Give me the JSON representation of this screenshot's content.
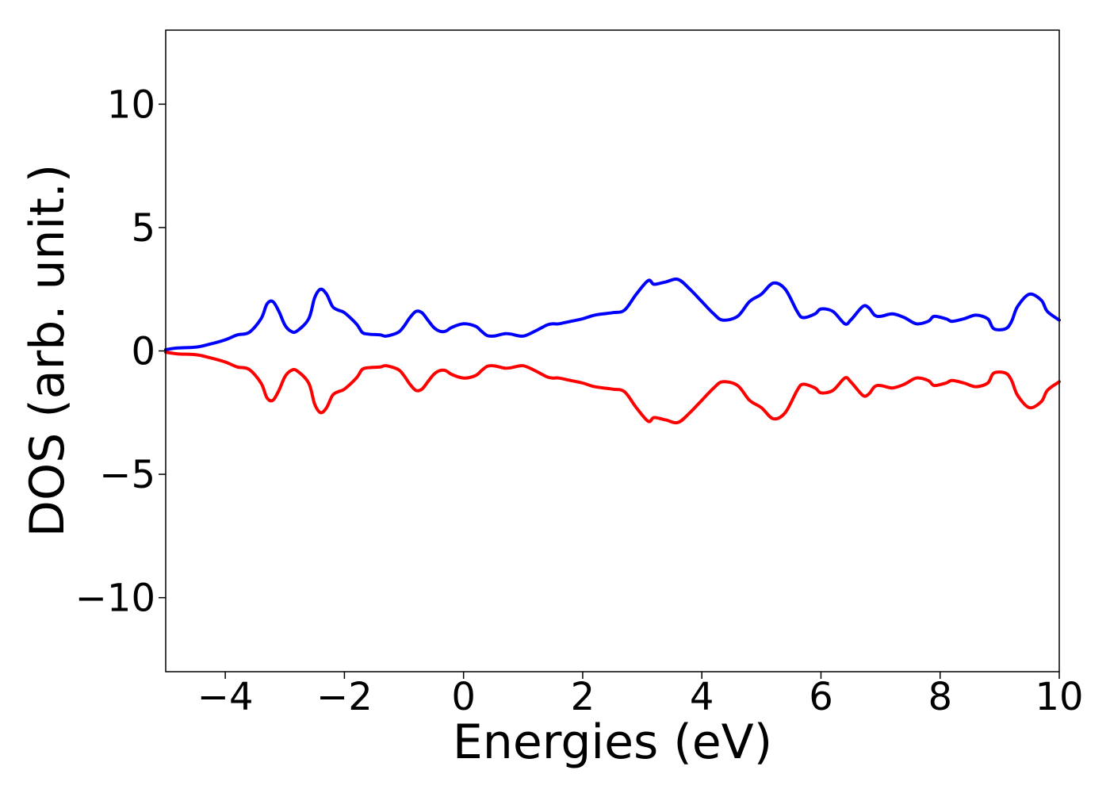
{
  "chart_data": {
    "type": "line",
    "title": "",
    "xlabel": "Energies (eV)",
    "ylabel": "DOS (arb. unit.)",
    "xlim": [
      -5,
      10
    ],
    "ylim": [
      -13,
      13
    ],
    "xticks": [
      -4,
      -2,
      0,
      2,
      4,
      6,
      8,
      10
    ],
    "xtick_labels": [
      "−4",
      "−2",
      "0",
      "2",
      "4",
      "6",
      "8",
      "10"
    ],
    "yticks": [
      -10,
      -5,
      0,
      5,
      10
    ],
    "ytick_labels": [
      "−10",
      "−5",
      "0",
      "5",
      "10"
    ],
    "grid": false,
    "legend": "none",
    "series": [
      {
        "color": "#0000ff",
        "x": [
          -5.0,
          -4.8,
          -4.5,
          -4.3,
          -4.0,
          -3.8,
          -3.6,
          -3.4,
          -3.3,
          -3.2,
          -3.1,
          -3.0,
          -2.9,
          -2.8,
          -2.6,
          -2.5,
          -2.4,
          -2.3,
          -2.2,
          -2.1,
          -2.0,
          -1.8,
          -1.7,
          -1.6,
          -1.4,
          -1.3,
          -1.1,
          -1.0,
          -0.9,
          -0.8,
          -0.7,
          -0.6,
          -0.5,
          -0.4,
          -0.3,
          -0.2,
          0.0,
          0.2,
          0.3,
          0.4,
          0.5,
          0.6,
          0.7,
          0.8,
          1.0,
          1.2,
          1.4,
          1.5,
          1.6,
          1.8,
          2.0,
          2.2,
          2.5,
          2.7,
          2.9,
          3.1,
          3.2,
          3.4,
          3.6,
          3.8,
          4.0,
          4.2,
          4.35,
          4.6,
          4.8,
          5.0,
          5.2,
          5.4,
          5.6,
          5.7,
          5.9,
          6.0,
          6.2,
          6.4,
          6.5,
          6.7,
          6.8,
          6.9,
          7.0,
          7.2,
          7.4,
          7.6,
          7.8,
          7.9,
          8.1,
          8.2,
          8.4,
          8.6,
          8.8,
          8.9,
          9.1,
          9.2,
          9.3,
          9.5,
          9.7,
          9.8,
          10.0
        ],
        "y": [
          0.05,
          0.12,
          0.15,
          0.25,
          0.45,
          0.65,
          0.75,
          1.3,
          1.9,
          2.0,
          1.6,
          1.05,
          0.8,
          0.8,
          1.3,
          2.15,
          2.5,
          2.3,
          1.8,
          1.65,
          1.55,
          1.1,
          0.75,
          0.68,
          0.65,
          0.6,
          0.75,
          1.0,
          1.35,
          1.6,
          1.55,
          1.25,
          0.95,
          0.8,
          0.8,
          0.95,
          1.1,
          1.0,
          0.8,
          0.62,
          0.6,
          0.65,
          0.7,
          0.68,
          0.6,
          0.8,
          1.05,
          1.1,
          1.1,
          1.2,
          1.3,
          1.45,
          1.55,
          1.65,
          2.3,
          2.85,
          2.7,
          2.8,
          2.9,
          2.5,
          2.0,
          1.5,
          1.25,
          1.4,
          2.0,
          2.3,
          2.75,
          2.5,
          1.6,
          1.35,
          1.5,
          1.7,
          1.6,
          1.1,
          1.25,
          1.8,
          1.75,
          1.45,
          1.4,
          1.5,
          1.35,
          1.1,
          1.2,
          1.4,
          1.3,
          1.2,
          1.3,
          1.45,
          1.3,
          0.9,
          0.9,
          1.2,
          1.8,
          2.3,
          2.05,
          1.6,
          1.25
        ]
      },
      {
        "color": "#ff0000",
        "x": [
          -5.0,
          -4.8,
          -4.5,
          -4.3,
          -4.0,
          -3.8,
          -3.6,
          -3.4,
          -3.3,
          -3.2,
          -3.1,
          -3.0,
          -2.9,
          -2.8,
          -2.6,
          -2.5,
          -2.4,
          -2.3,
          -2.2,
          -2.1,
          -2.0,
          -1.8,
          -1.7,
          -1.6,
          -1.4,
          -1.3,
          -1.1,
          -1.0,
          -0.9,
          -0.8,
          -0.7,
          -0.6,
          -0.5,
          -0.4,
          -0.3,
          -0.2,
          0.0,
          0.2,
          0.3,
          0.4,
          0.5,
          0.6,
          0.7,
          0.8,
          1.0,
          1.2,
          1.4,
          1.5,
          1.6,
          1.8,
          2.0,
          2.2,
          2.5,
          2.7,
          2.9,
          3.1,
          3.2,
          3.4,
          3.6,
          3.8,
          4.0,
          4.2,
          4.35,
          4.6,
          4.8,
          5.0,
          5.2,
          5.4,
          5.6,
          5.7,
          5.9,
          6.0,
          6.2,
          6.4,
          6.5,
          6.7,
          6.8,
          6.9,
          7.0,
          7.2,
          7.4,
          7.6,
          7.8,
          7.9,
          8.1,
          8.2,
          8.4,
          8.6,
          8.8,
          8.9,
          9.1,
          9.2,
          9.3,
          9.5,
          9.7,
          9.8,
          10.0
        ],
        "y": [
          -0.05,
          -0.12,
          -0.15,
          -0.25,
          -0.45,
          -0.65,
          -0.75,
          -1.3,
          -1.9,
          -2.0,
          -1.6,
          -1.05,
          -0.8,
          -0.8,
          -1.3,
          -2.15,
          -2.5,
          -2.3,
          -1.8,
          -1.65,
          -1.55,
          -1.1,
          -0.75,
          -0.68,
          -0.65,
          -0.6,
          -0.75,
          -1.0,
          -1.35,
          -1.6,
          -1.55,
          -1.25,
          -0.95,
          -0.8,
          -0.8,
          -0.95,
          -1.1,
          -1.0,
          -0.8,
          -0.62,
          -0.6,
          -0.65,
          -0.7,
          -0.68,
          -0.6,
          -0.8,
          -1.05,
          -1.1,
          -1.1,
          -1.2,
          -1.3,
          -1.45,
          -1.55,
          -1.65,
          -2.3,
          -2.85,
          -2.7,
          -2.8,
          -2.9,
          -2.5,
          -2.0,
          -1.5,
          -1.25,
          -1.4,
          -2.0,
          -2.3,
          -2.75,
          -2.5,
          -1.6,
          -1.35,
          -1.5,
          -1.7,
          -1.6,
          -1.1,
          -1.25,
          -1.8,
          -1.75,
          -1.45,
          -1.4,
          -1.5,
          -1.35,
          -1.1,
          -1.2,
          -1.4,
          -1.3,
          -1.2,
          -1.3,
          -1.45,
          -1.3,
          -0.9,
          -0.9,
          -1.2,
          -1.8,
          -2.3,
          -2.05,
          -1.6,
          -1.25
        ]
      }
    ]
  }
}
